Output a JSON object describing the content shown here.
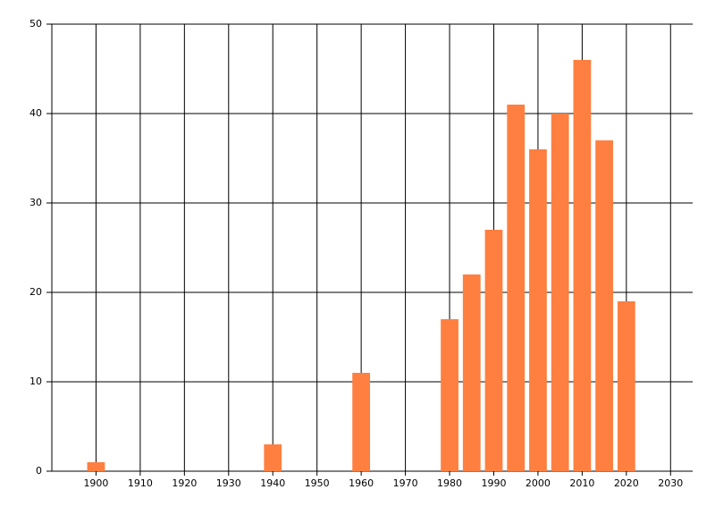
{
  "chart_data": {
    "type": "bar",
    "x": [
      1900,
      1940,
      1960,
      1980,
      1985,
      1990,
      1995,
      2000,
      2005,
      2010,
      2015,
      2020
    ],
    "values": [
      1,
      3,
      11,
      17,
      22,
      27,
      41,
      36,
      40,
      46,
      37,
      19
    ],
    "color": "#ff7f40",
    "xlim": [
      1890,
      2035
    ],
    "xticks": [
      1900,
      1910,
      1920,
      1930,
      1940,
      1950,
      1960,
      1970,
      1980,
      1990,
      2000,
      2010,
      2020,
      2030
    ],
    "ylim": [
      0,
      50
    ],
    "yticks": [
      0,
      10,
      20,
      30,
      40,
      50
    ],
    "grid": true
  }
}
